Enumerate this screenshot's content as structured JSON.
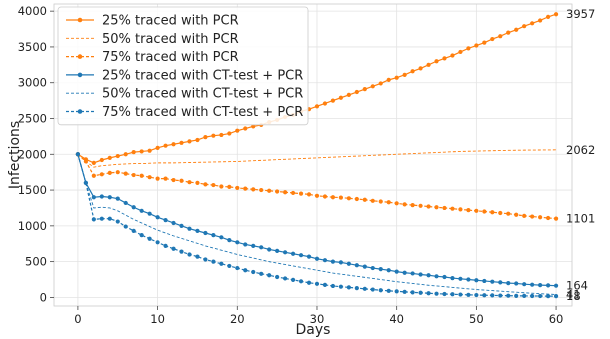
{
  "chart_data": {
    "type": "line",
    "xlabel": "Days",
    "ylabel": "Infections",
    "xlim": [
      -3,
      62
    ],
    "ylim": [
      -120,
      4100
    ],
    "x_ticks": [
      0,
      10,
      20,
      30,
      40,
      50,
      60
    ],
    "y_ticks": [
      0,
      500,
      1000,
      1500,
      2000,
      2500,
      3000,
      3500,
      4000
    ],
    "grid": true,
    "legend_position": "upper-left",
    "colors": {
      "pcr": "#ff7f0e",
      "ct": "#1f77b4"
    },
    "series": [
      {
        "name": "25% traced with PCR",
        "color": "#ff7f0e",
        "style": "solid-marker",
        "end_label": "3957",
        "points": [
          [
            0,
            2000
          ],
          [
            1,
            1930
          ],
          [
            2,
            1880
          ],
          [
            3,
            1920
          ],
          [
            4,
            1950
          ],
          [
            5,
            1975
          ],
          [
            6,
            2000
          ],
          [
            7,
            2030
          ],
          [
            8,
            2040
          ],
          [
            9,
            2050
          ],
          [
            10,
            2090
          ],
          [
            11,
            2120
          ],
          [
            12,
            2140
          ],
          [
            13,
            2160
          ],
          [
            14,
            2180
          ],
          [
            15,
            2200
          ],
          [
            16,
            2240
          ],
          [
            17,
            2260
          ],
          [
            18,
            2270
          ],
          [
            19,
            2290
          ],
          [
            20,
            2330
          ],
          [
            21,
            2360
          ],
          [
            22,
            2390
          ],
          [
            23,
            2410
          ],
          [
            24,
            2450
          ],
          [
            25,
            2480
          ],
          [
            26,
            2520
          ],
          [
            27,
            2550
          ],
          [
            28,
            2600
          ],
          [
            29,
            2630
          ],
          [
            30,
            2670
          ],
          [
            31,
            2710
          ],
          [
            32,
            2750
          ],
          [
            33,
            2790
          ],
          [
            34,
            2830
          ],
          [
            35,
            2870
          ],
          [
            36,
            2910
          ],
          [
            37,
            2950
          ],
          [
            38,
            2990
          ],
          [
            39,
            3040
          ],
          [
            40,
            3070
          ],
          [
            41,
            3110
          ],
          [
            42,
            3160
          ],
          [
            43,
            3200
          ],
          [
            44,
            3250
          ],
          [
            45,
            3300
          ],
          [
            46,
            3340
          ],
          [
            47,
            3380
          ],
          [
            48,
            3430
          ],
          [
            49,
            3480
          ],
          [
            50,
            3520
          ],
          [
            51,
            3560
          ],
          [
            52,
            3610
          ],
          [
            53,
            3650
          ],
          [
            54,
            3700
          ],
          [
            55,
            3740
          ],
          [
            56,
            3790
          ],
          [
            57,
            3830
          ],
          [
            58,
            3870
          ],
          [
            59,
            3920
          ],
          [
            60,
            3957
          ]
        ]
      },
      {
        "name": "50% traced with PCR",
        "color": "#ff7f0e",
        "style": "dashed",
        "end_label": "2062",
        "points": [
          [
            0,
            2000
          ],
          [
            1,
            1900
          ],
          [
            2,
            1820
          ],
          [
            3,
            1840
          ],
          [
            4,
            1850
          ],
          [
            5,
            1860
          ],
          [
            6,
            1865
          ],
          [
            7,
            1870
          ],
          [
            8,
            1870
          ],
          [
            9,
            1875
          ],
          [
            10,
            1880
          ],
          [
            12,
            1880
          ],
          [
            14,
            1885
          ],
          [
            16,
            1890
          ],
          [
            18,
            1895
          ],
          [
            20,
            1900
          ],
          [
            22,
            1910
          ],
          [
            24,
            1920
          ],
          [
            26,
            1930
          ],
          [
            28,
            1940
          ],
          [
            30,
            1950
          ],
          [
            32,
            1960
          ],
          [
            34,
            1970
          ],
          [
            36,
            1980
          ],
          [
            38,
            1990
          ],
          [
            40,
            2000
          ],
          [
            42,
            2010
          ],
          [
            44,
            2020
          ],
          [
            46,
            2030
          ],
          [
            48,
            2040
          ],
          [
            50,
            2045
          ],
          [
            52,
            2050
          ],
          [
            54,
            2055
          ],
          [
            56,
            2058
          ],
          [
            58,
            2060
          ],
          [
            60,
            2062
          ]
        ]
      },
      {
        "name": "75% traced with PCR",
        "color": "#ff7f0e",
        "style": "dashed-marker",
        "end_label": "1101",
        "points": [
          [
            0,
            2000
          ],
          [
            1,
            1900
          ],
          [
            2,
            1700
          ],
          [
            3,
            1720
          ],
          [
            4,
            1740
          ],
          [
            5,
            1750
          ],
          [
            6,
            1730
          ],
          [
            7,
            1710
          ],
          [
            8,
            1700
          ],
          [
            9,
            1680
          ],
          [
            10,
            1660
          ],
          [
            11,
            1660
          ],
          [
            12,
            1640
          ],
          [
            13,
            1630
          ],
          [
            14,
            1610
          ],
          [
            15,
            1600
          ],
          [
            16,
            1580
          ],
          [
            17,
            1570
          ],
          [
            18,
            1550
          ],
          [
            19,
            1545
          ],
          [
            20,
            1530
          ],
          [
            21,
            1520
          ],
          [
            22,
            1510
          ],
          [
            23,
            1500
          ],
          [
            24,
            1490
          ],
          [
            25,
            1480
          ],
          [
            26,
            1470
          ],
          [
            27,
            1460
          ],
          [
            28,
            1450
          ],
          [
            29,
            1440
          ],
          [
            30,
            1420
          ],
          [
            31,
            1410
          ],
          [
            32,
            1400
          ],
          [
            33,
            1395
          ],
          [
            34,
            1385
          ],
          [
            35,
            1375
          ],
          [
            36,
            1365
          ],
          [
            37,
            1350
          ],
          [
            38,
            1340
          ],
          [
            39,
            1330
          ],
          [
            40,
            1315
          ],
          [
            41,
            1300
          ],
          [
            42,
            1290
          ],
          [
            43,
            1280
          ],
          [
            44,
            1270
          ],
          [
            45,
            1260
          ],
          [
            46,
            1250
          ],
          [
            47,
            1240
          ],
          [
            48,
            1230
          ],
          [
            49,
            1220
          ],
          [
            50,
            1210
          ],
          [
            51,
            1200
          ],
          [
            52,
            1190
          ],
          [
            53,
            1180
          ],
          [
            54,
            1170
          ],
          [
            55,
            1155
          ],
          [
            56,
            1140
          ],
          [
            57,
            1130
          ],
          [
            58,
            1120
          ],
          [
            59,
            1110
          ],
          [
            60,
            1101
          ]
        ]
      },
      {
        "name": "25% traced with CT-test + PCR",
        "color": "#1f77b4",
        "style": "solid-marker",
        "end_label": "164",
        "points": [
          [
            0,
            2000
          ],
          [
            1,
            1600
          ],
          [
            2,
            1400
          ],
          [
            3,
            1410
          ],
          [
            4,
            1400
          ],
          [
            5,
            1380
          ],
          [
            6,
            1320
          ],
          [
            7,
            1260
          ],
          [
            8,
            1210
          ],
          [
            9,
            1170
          ],
          [
            10,
            1120
          ],
          [
            11,
            1080
          ],
          [
            12,
            1040
          ],
          [
            13,
            1000
          ],
          [
            14,
            960
          ],
          [
            15,
            930
          ],
          [
            16,
            900
          ],
          [
            17,
            870
          ],
          [
            18,
            840
          ],
          [
            19,
            800
          ],
          [
            20,
            770
          ],
          [
            21,
            740
          ],
          [
            22,
            720
          ],
          [
            23,
            700
          ],
          [
            24,
            670
          ],
          [
            25,
            650
          ],
          [
            26,
            630
          ],
          [
            27,
            610
          ],
          [
            28,
            590
          ],
          [
            29,
            570
          ],
          [
            30,
            540
          ],
          [
            31,
            520
          ],
          [
            32,
            500
          ],
          [
            33,
            490
          ],
          [
            34,
            470
          ],
          [
            35,
            450
          ],
          [
            36,
            430
          ],
          [
            37,
            410
          ],
          [
            38,
            395
          ],
          [
            39,
            380
          ],
          [
            40,
            360
          ],
          [
            41,
            345
          ],
          [
            42,
            335
          ],
          [
            43,
            320
          ],
          [
            44,
            310
          ],
          [
            45,
            295
          ],
          [
            46,
            285
          ],
          [
            47,
            270
          ],
          [
            48,
            260
          ],
          [
            49,
            250
          ],
          [
            50,
            240
          ],
          [
            51,
            230
          ],
          [
            52,
            220
          ],
          [
            53,
            210
          ],
          [
            54,
            200
          ],
          [
            55,
            195
          ],
          [
            56,
            185
          ],
          [
            57,
            178
          ],
          [
            58,
            172
          ],
          [
            59,
            168
          ],
          [
            60,
            164
          ]
        ]
      },
      {
        "name": "50% traced with CT-test + PCR",
        "color": "#1f77b4",
        "style": "dashed",
        "end_label": "41",
        "points": [
          [
            0,
            2000
          ],
          [
            1,
            1600
          ],
          [
            2,
            1250
          ],
          [
            3,
            1260
          ],
          [
            4,
            1250
          ],
          [
            5,
            1210
          ],
          [
            6,
            1150
          ],
          [
            7,
            1090
          ],
          [
            8,
            1040
          ],
          [
            9,
            990
          ],
          [
            10,
            940
          ],
          [
            12,
            860
          ],
          [
            14,
            790
          ],
          [
            16,
            720
          ],
          [
            18,
            660
          ],
          [
            20,
            600
          ],
          [
            22,
            550
          ],
          [
            24,
            500
          ],
          [
            26,
            460
          ],
          [
            28,
            420
          ],
          [
            30,
            380
          ],
          [
            32,
            340
          ],
          [
            34,
            310
          ],
          [
            36,
            280
          ],
          [
            38,
            250
          ],
          [
            40,
            220
          ],
          [
            42,
            195
          ],
          [
            44,
            170
          ],
          [
            46,
            150
          ],
          [
            48,
            130
          ],
          [
            50,
            110
          ],
          [
            52,
            95
          ],
          [
            54,
            80
          ],
          [
            56,
            65
          ],
          [
            58,
            52
          ],
          [
            60,
            41
          ]
        ]
      },
      {
        "name": "75% traced with CT-test + PCR",
        "color": "#1f77b4",
        "style": "dashed-marker",
        "end_label": "18",
        "points": [
          [
            0,
            2000
          ],
          [
            1,
            1600
          ],
          [
            2,
            1090
          ],
          [
            3,
            1100
          ],
          [
            4,
            1100
          ],
          [
            5,
            1060
          ],
          [
            6,
            990
          ],
          [
            7,
            930
          ],
          [
            8,
            870
          ],
          [
            9,
            820
          ],
          [
            10,
            770
          ],
          [
            11,
            720
          ],
          [
            12,
            680
          ],
          [
            13,
            640
          ],
          [
            14,
            600
          ],
          [
            15,
            570
          ],
          [
            16,
            530
          ],
          [
            17,
            500
          ],
          [
            18,
            470
          ],
          [
            19,
            440
          ],
          [
            20,
            410
          ],
          [
            21,
            380
          ],
          [
            22,
            355
          ],
          [
            23,
            330
          ],
          [
            24,
            310
          ],
          [
            25,
            285
          ],
          [
            26,
            265
          ],
          [
            27,
            245
          ],
          [
            28,
            225
          ],
          [
            29,
            205
          ],
          [
            30,
            190
          ],
          [
            31,
            175
          ],
          [
            32,
            160
          ],
          [
            33,
            150
          ],
          [
            34,
            140
          ],
          [
            35,
            130
          ],
          [
            36,
            120
          ],
          [
            37,
            110
          ],
          [
            38,
            100
          ],
          [
            39,
            92
          ],
          [
            40,
            85
          ],
          [
            41,
            78
          ],
          [
            42,
            70
          ],
          [
            43,
            65
          ],
          [
            44,
            58
          ],
          [
            45,
            52
          ],
          [
            46,
            48
          ],
          [
            47,
            44
          ],
          [
            48,
            40
          ],
          [
            49,
            36
          ],
          [
            50,
            33
          ],
          [
            51,
            30
          ],
          [
            52,
            28
          ],
          [
            53,
            26
          ],
          [
            54,
            24
          ],
          [
            55,
            22
          ],
          [
            56,
            21
          ],
          [
            57,
            20
          ],
          [
            58,
            19
          ],
          [
            59,
            18
          ],
          [
            60,
            18
          ]
        ]
      }
    ]
  }
}
